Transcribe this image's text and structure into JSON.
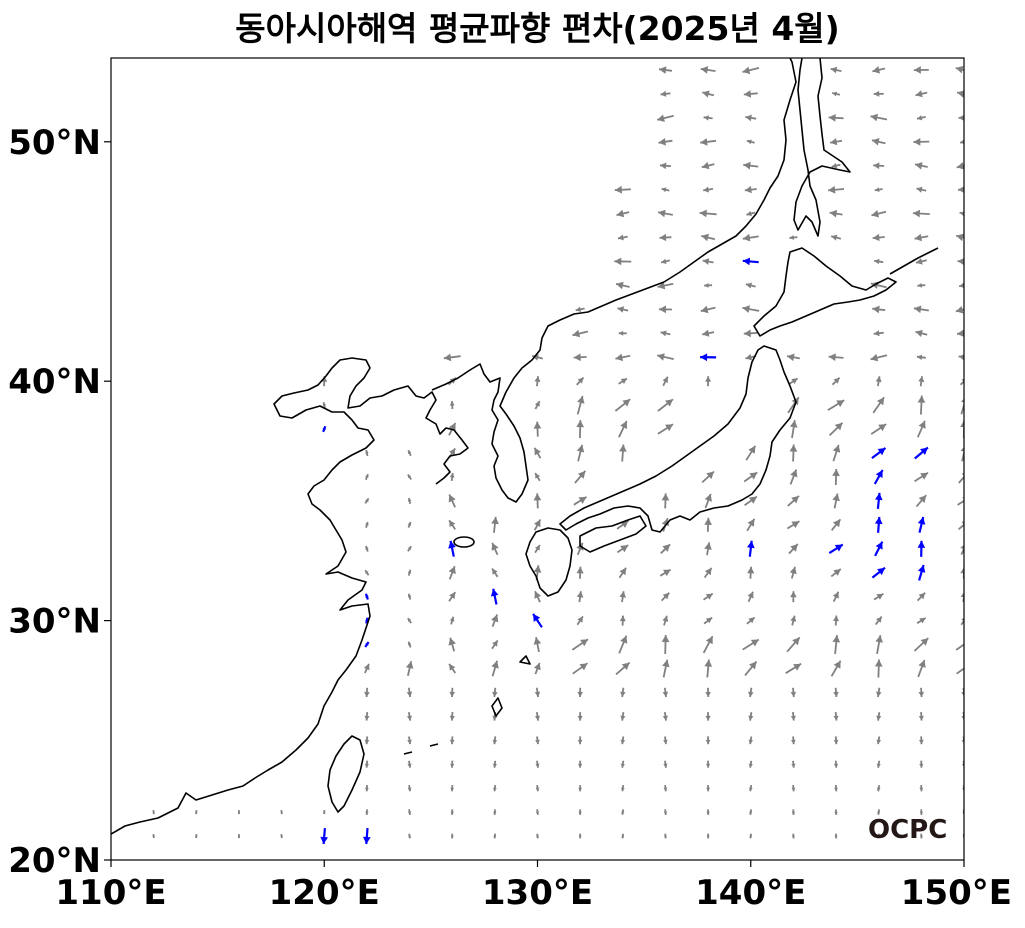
{
  "title": "동아시아해역 평균파향 편차(2025년 4월)",
  "logo_text": "OCPC",
  "axes": {
    "x_ticks": [
      "110°E",
      "120°E",
      "130°E",
      "140°E",
      "150°E"
    ],
    "y_ticks": [
      "20°N",
      "30°N",
      "40°N",
      "50°N"
    ],
    "xlim": [
      110,
      150
    ],
    "ylim": [
      20,
      53.5
    ]
  },
  "colors": {
    "land_outline": "#000000",
    "normal_arrow": "#808080",
    "highlight_arrow": "#0000ff",
    "frame": "#000000",
    "logo": "#231815"
  },
  "legend": "none",
  "grid": false
}
